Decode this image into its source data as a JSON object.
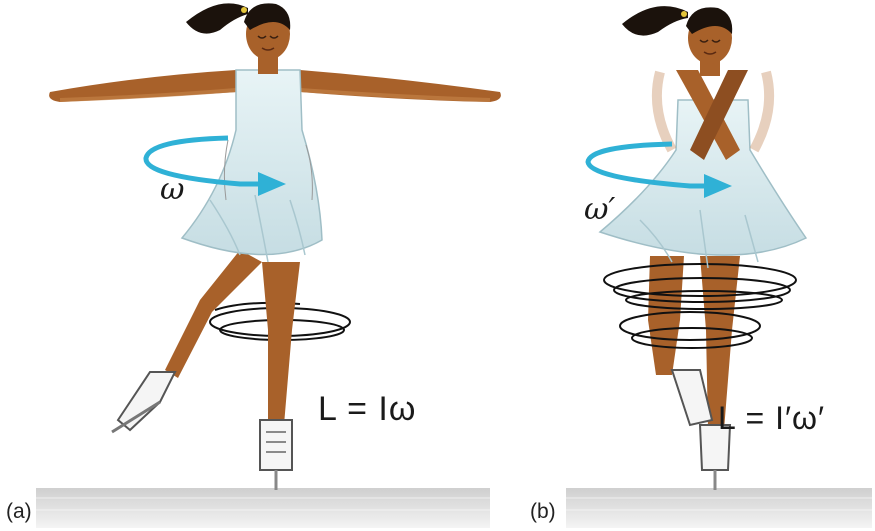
{
  "panels": [
    {
      "label": "(a)",
      "omega_label": "ω",
      "equation": "L = Iω"
    },
    {
      "label": "(b)",
      "omega_label": "ω′",
      "equation": "L = I′ω′"
    }
  ],
  "colors": {
    "skin": "#a8612a",
    "skin_shadow": "#7a4118",
    "hair": "#1b120c",
    "dress": "#dcecef",
    "dress_shade": "#b7d3da",
    "arrow": "#2fb1d6",
    "ice_top": "#d9d9d9",
    "ice_bottom": "#f3f3f3"
  }
}
